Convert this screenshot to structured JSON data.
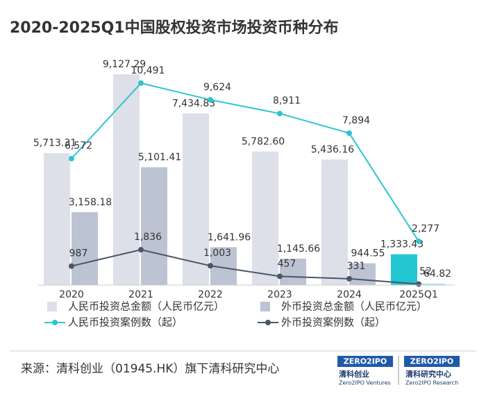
{
  "chart_data": {
    "type": "bar_line",
    "title": "2020-2025Q1中国股权投资市场投资币种分布",
    "categories": [
      "2020",
      "2021",
      "2022",
      "2023",
      "2024",
      "2025Q1"
    ],
    "ylim": [
      0,
      10000
    ],
    "y2lim": [
      0,
      12000
    ],
    "series": [
      {
        "name": "人民币投资总金额（人民币亿元）",
        "kind": "bar",
        "color": "#dde0e8",
        "colors": [
          "#dde0e8",
          "#dde0e8",
          "#dde0e8",
          "#dde0e8",
          "#dde0e8",
          "#22c7d3"
        ],
        "values": [
          5713.31,
          9127.29,
          7434.83,
          5782.6,
          5436.16,
          1333.43
        ],
        "value_labels": [
          "5,713.31",
          "9,127.29",
          "7,434.83",
          "5,782.60",
          "5,436.16",
          "1,333.43"
        ]
      },
      {
        "name": "外币投资总金额（人民币亿元）",
        "kind": "bar",
        "color": "#bcc3d3",
        "colors": [
          "#bcc3d3",
          "#bcc3d3",
          "#bcc3d3",
          "#bcc3d3",
          "#bcc3d3",
          "#9fe6ec"
        ],
        "values": [
          3158.18,
          5101.41,
          1641.96,
          1145.66,
          944.55,
          64.82
        ],
        "value_labels": [
          "3,158.18",
          "5,101.41",
          "1,641.96",
          "1,145.66",
          "944.55",
          "64.82"
        ]
      },
      {
        "name": "人民币投资案例数（起）",
        "kind": "line",
        "axis": "y2",
        "color": "#2ec4cf",
        "values": [
          6572,
          10491,
          9624,
          8911,
          7894,
          2277
        ],
        "value_labels": [
          "6,572",
          "10,491",
          "9,624",
          "8,911",
          "7,894",
          "2,277"
        ]
      },
      {
        "name": "外币投资案例数（起）",
        "kind": "line",
        "axis": "y2",
        "color": "#4a5568",
        "values": [
          987,
          1836,
          1003,
          457,
          331,
          52
        ],
        "value_labels": [
          "987",
          "1,836",
          "1,003",
          "457",
          "331",
          "52"
        ]
      }
    ],
    "source": "来源：清科创业（01945.HK）旗下清科研究中心",
    "logos": [
      {
        "brand": "ZERO2IPO",
        "name": "清科创业",
        "sub": "Zero2IPO Ventures"
      },
      {
        "brand": "ZERO2IPO",
        "name": "清科研究中心",
        "sub": "Zero2IPO Research"
      }
    ]
  }
}
